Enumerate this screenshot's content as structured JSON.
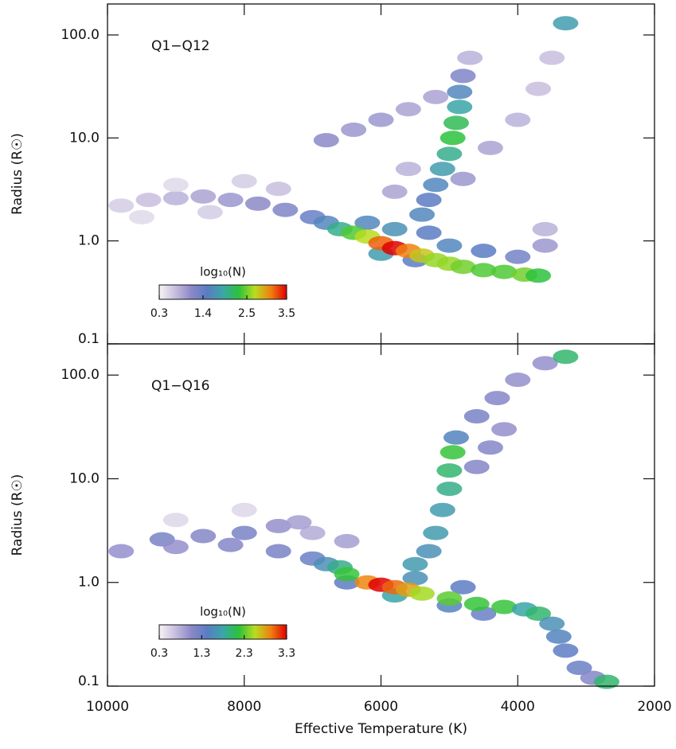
{
  "chart_data": [
    {
      "type": "heatmap",
      "panel_label": "Q1−Q12",
      "ylabel": "Radius (R☉)",
      "log_y": true,
      "xtick_labels": false,
      "xlim": [
        10000,
        2000
      ],
      "ylim": [
        0.1,
        200
      ],
      "xticks": [
        10000,
        8000,
        6000,
        4000,
        2000
      ],
      "yticks": [
        {
          "value": 0.1,
          "label": "0.1"
        },
        {
          "value": 1,
          "label": "1.0"
        },
        {
          "value": 10,
          "label": "10.0"
        },
        {
          "value": 100,
          "label": "100.0"
        }
      ],
      "colorbar_label": "log₁₀(N)",
      "clim": [
        0.3,
        3.5
      ],
      "cbticks": [
        {
          "value": 0.3,
          "label": "0.3"
        },
        {
          "value": 1.4,
          "label": "1.4"
        },
        {
          "value": 2.5,
          "label": "2.5"
        },
        {
          "value": 3.5,
          "label": "3.5"
        }
      ],
      "colormap": [
        "#f6f4f6",
        "#c8bede",
        "#8c88c8",
        "#5a7cc4",
        "#3aa6a6",
        "#2cc23c",
        "#b8dc20",
        "#f08010",
        "#e00000"
      ],
      "x": [
        9800,
        9400,
        9000,
        8600,
        8200,
        7800,
        7400,
        7000,
        6800,
        9000,
        8000,
        7500,
        9500,
        8500,
        6000,
        5500,
        5000,
        4500,
        4000,
        3600,
        3600,
        6200,
        5800,
        5300,
        5600,
        5800,
        4800,
        4400,
        4000,
        3700,
        3500,
        3300,
        6800,
        6400,
        6000,
        5600,
        5200,
        5400,
        5300,
        5200,
        5100,
        5000,
        4950,
        4900,
        4850,
        4850,
        4800,
        4700,
        6600,
        6400,
        6200,
        6000,
        5800,
        5600,
        5400,
        5200,
        5000,
        4800,
        4500,
        4200,
        3900,
        3700
      ],
      "y": [
        2.2,
        2.5,
        2.6,
        2.7,
        2.5,
        2.3,
        2.0,
        1.7,
        1.5,
        3.5,
        3.8,
        3.2,
        1.7,
        1.9,
        0.75,
        0.65,
        0.9,
        0.8,
        0.7,
        0.9,
        1.3,
        1.5,
        1.3,
        1.2,
        5,
        3,
        4,
        8,
        15,
        30,
        60,
        130,
        9.5,
        12,
        15,
        19,
        25,
        1.8,
        2.5,
        3.5,
        5,
        7,
        10,
        14,
        20,
        28,
        40,
        60,
        1.3,
        1.2,
        1.1,
        0.95,
        0.85,
        0.8,
        0.72,
        0.65,
        0.6,
        0.56,
        0.52,
        0.5,
        0.47,
        0.46
      ],
      "values": [
        0.6,
        0.7,
        0.8,
        0.9,
        1.0,
        1.1,
        1.2,
        1.4,
        1.6,
        0.5,
        0.6,
        0.7,
        0.5,
        0.6,
        1.8,
        1.5,
        1.6,
        1.5,
        1.3,
        1.0,
        0.8,
        1.6,
        1.7,
        1.5,
        0.8,
        0.9,
        1.0,
        0.9,
        0.8,
        0.7,
        0.7,
        1.8,
        1.1,
        1.0,
        1.0,
        0.9,
        0.9,
        1.6,
        1.5,
        1.6,
        1.8,
        2.0,
        2.3,
        2.2,
        1.9,
        1.6,
        1.2,
        0.8,
        2.0,
        2.4,
        2.7,
        3.2,
        3.5,
        3.1,
        2.8,
        2.6,
        2.6,
        2.5,
        2.4,
        2.4,
        2.5,
        2.3
      ]
    },
    {
      "type": "heatmap",
      "panel_label": "Q1−Q16",
      "ylabel": "Radius (R☉)",
      "xlabel": "Effective Temperature (K)",
      "log_y": true,
      "xtick_labels": true,
      "xlim": [
        10000,
        2000
      ],
      "ylim": [
        0.1,
        200
      ],
      "xticks": [
        10000,
        8000,
        6000,
        4000,
        2000
      ],
      "yticks": [
        {
          "value": 0.1,
          "label": "0.1"
        },
        {
          "value": 1,
          "label": "1.0"
        },
        {
          "value": 10,
          "label": "10.0"
        },
        {
          "value": 100,
          "label": "100.0"
        }
      ],
      "colorbar_label": "log₁₀(N)",
      "clim": [
        0.3,
        3.3
      ],
      "cbticks": [
        {
          "value": 0.3,
          "label": "0.3"
        },
        {
          "value": 1.3,
          "label": "1.3"
        },
        {
          "value": 2.3,
          "label": "2.3"
        },
        {
          "value": 3.3,
          "label": "3.3"
        }
      ],
      "colormap": [
        "#f6f4f6",
        "#c8bede",
        "#8c88c8",
        "#5a7cc4",
        "#3aa6a6",
        "#2cc23c",
        "#b8dc20",
        "#f08010",
        "#e00000"
      ],
      "x": [
        9000,
        8000,
        7000,
        6500,
        9800,
        9200,
        8600,
        8000,
        7500,
        7200,
        9000,
        8200,
        7500,
        7000,
        6800,
        6600,
        5800,
        5000,
        4500,
        6500,
        5500,
        4800,
        5500,
        5300,
        5200,
        5100,
        5000,
        5000,
        4950,
        4900,
        4600,
        4300,
        4000,
        3600,
        3300,
        4400,
        4600,
        4200,
        6500,
        6200,
        6000,
        5800,
        5600,
        5400,
        5000,
        4600,
        4200,
        3900,
        3700,
        3500,
        3400,
        3300,
        3100,
        2900,
        2700
      ],
      "y": [
        4,
        5,
        3,
        2.5,
        2.0,
        2.6,
        2.8,
        3.0,
        3.5,
        3.8,
        2.2,
        2.3,
        2.0,
        1.7,
        1.5,
        1.4,
        0.75,
        0.6,
        0.5,
        1.0,
        1.1,
        0.9,
        1.5,
        2,
        3,
        5,
        8,
        12,
        18,
        25,
        40,
        60,
        90,
        130,
        150,
        20,
        13,
        30,
        1.2,
        1.0,
        0.95,
        0.9,
        0.85,
        0.78,
        0.7,
        0.62,
        0.58,
        0.55,
        0.5,
        0.4,
        0.3,
        0.22,
        0.15,
        0.12,
        0.11
      ],
      "values": [
        0.5,
        0.5,
        0.8,
        0.9,
        1.0,
        1.2,
        1.1,
        1.2,
        1.0,
        0.9,
        1.0,
        1.1,
        1.2,
        1.3,
        1.6,
        1.9,
        1.8,
        1.5,
        1.3,
        1.4,
        1.6,
        1.4,
        1.7,
        1.6,
        1.7,
        1.7,
        1.9,
        2.0,
        2.2,
        1.5,
        1.2,
        1.1,
        1.0,
        1.0,
        2.0,
        1.1,
        1.1,
        1.0,
        2.2,
        2.9,
        3.3,
        3.0,
        2.8,
        2.5,
        2.3,
        2.2,
        2.2,
        1.8,
        2.0,
        1.6,
        1.5,
        1.4,
        1.3,
        1.1,
        2.0
      ]
    }
  ]
}
